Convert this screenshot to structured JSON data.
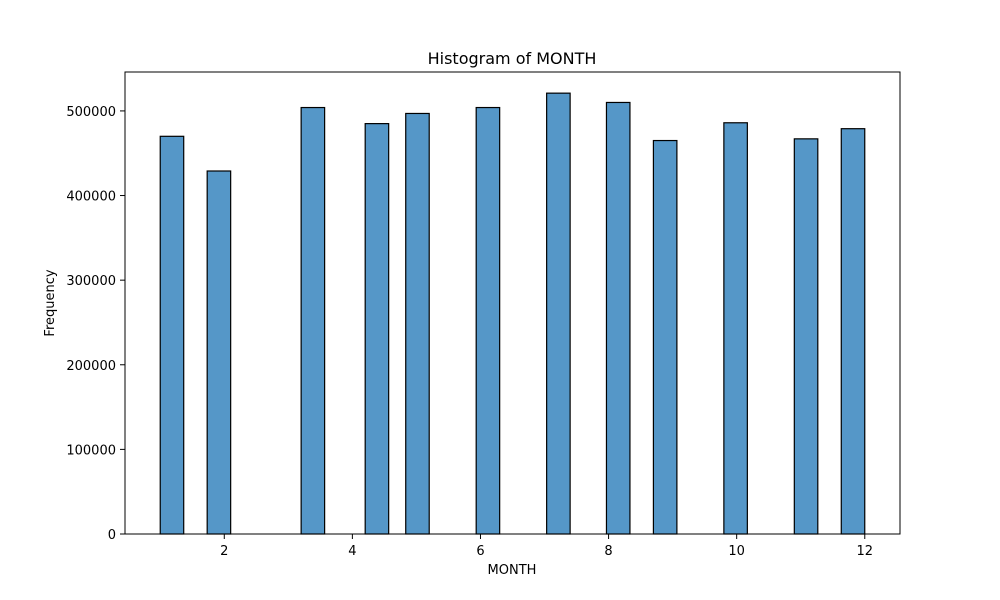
{
  "chart_data": {
    "type": "bar",
    "title": "Histogram of MONTH",
    "xlabel": "MONTH",
    "ylabel": "Frequency",
    "bar_color": "#5597c8",
    "edge_color": "#000000",
    "xlim": [
      0.45,
      12.55
    ],
    "ylim": [
      0,
      546000
    ],
    "x_ticks": [
      2,
      4,
      6,
      8,
      10,
      12
    ],
    "x_tick_labels": [
      "2",
      "4",
      "6",
      "8",
      "10",
      "12"
    ],
    "y_ticks": [
      0,
      100000,
      200000,
      300000,
      400000,
      500000
    ],
    "y_tick_labels": [
      "0",
      "100000",
      "200000",
      "300000",
      "400000",
      "500000"
    ],
    "bin_width": 0.3667,
    "bars": [
      {
        "x_start": 1.0,
        "value": 470000
      },
      {
        "x_start": 1.733,
        "value": 429000
      },
      {
        "x_start": 3.2,
        "value": 504000
      },
      {
        "x_start": 4.2,
        "value": 485000
      },
      {
        "x_start": 4.833,
        "value": 497000
      },
      {
        "x_start": 5.933,
        "value": 504000
      },
      {
        "x_start": 7.033,
        "value": 521000
      },
      {
        "x_start": 7.967,
        "value": 510000
      },
      {
        "x_start": 8.7,
        "value": 465000
      },
      {
        "x_start": 9.8,
        "value": 486000
      },
      {
        "x_start": 10.9,
        "value": 467000
      },
      {
        "x_start": 11.633,
        "value": 479000
      }
    ]
  }
}
